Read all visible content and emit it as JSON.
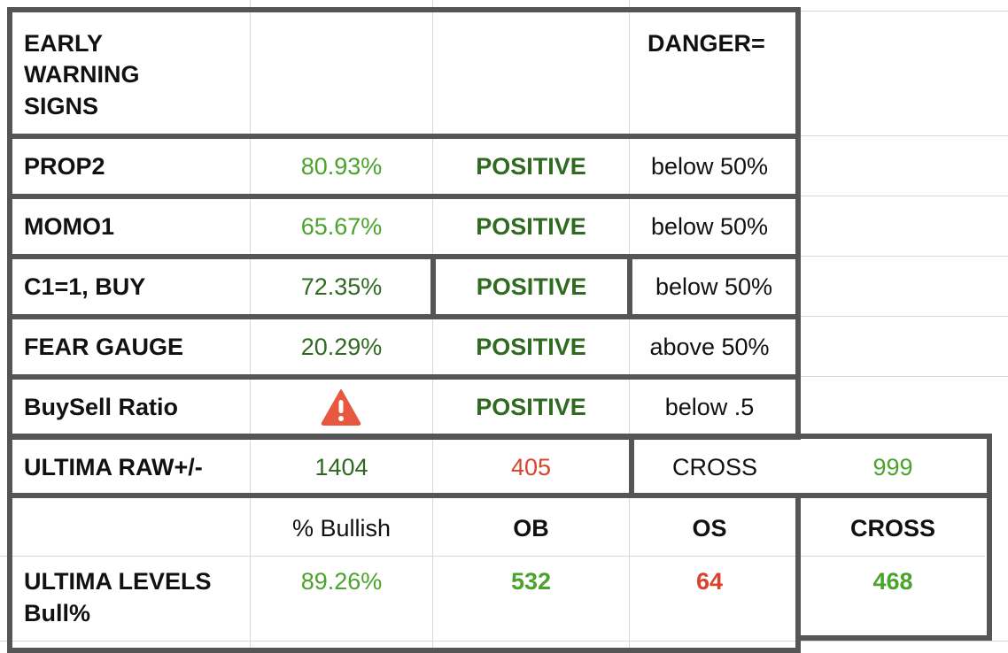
{
  "header": {
    "title_lines": [
      "EARLY",
      "WARNING",
      "SIGNS"
    ],
    "danger_label": "DANGER="
  },
  "rows": [
    {
      "label": "PROP2",
      "value": "80.93%",
      "status": "POSITIVE",
      "danger": "below 50%"
    },
    {
      "label": "MOMO1",
      "value": "65.67%",
      "status": "POSITIVE",
      "danger": "below 50%"
    },
    {
      "label": "C1=1, BUY",
      "value": "72.35%",
      "status": "POSITIVE",
      "danger": "below 50%"
    },
    {
      "label": "FEAR GAUGE",
      "value": "20.29%",
      "status": "POSITIVE",
      "danger": "above 50%"
    },
    {
      "label": "BuySell Ratio",
      "value_icon": "warning-triangle-icon",
      "status": "POSITIVE",
      "danger": "below .5"
    }
  ],
  "ultima_raw": {
    "label": "ULTIMA RAW+/-",
    "value1": "1404",
    "value2": "405",
    "cross_label": "CROSS",
    "cross_value": "999"
  },
  "ultima_levels": {
    "headers": {
      "bullish": "% Bullish",
      "ob": "OB",
      "os": "OS",
      "cross": "CROSS"
    },
    "label_lines": [
      "ULTIMA LEVELS",
      "Bull%"
    ],
    "bullish": "89.26%",
    "ob": "532",
    "os": "64",
    "cross": "468"
  },
  "colors": {
    "light_green": "#4aa32c",
    "dark_green": "#2e6b20",
    "red": "#d9432e",
    "border": "#555555",
    "warning_icon": "#e8573f"
  }
}
